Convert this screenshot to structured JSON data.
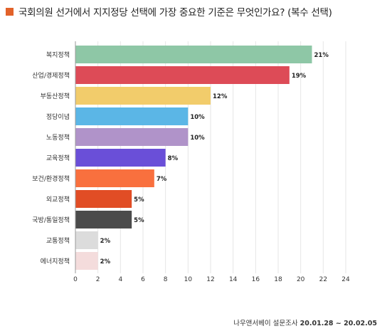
{
  "title": "국회의원 선거에서 지지정당 선택에 가장 중요한 기준은 무엇인가요? (복수 선택)",
  "footer": {
    "source": "나우앤서베이 설문조사",
    "period": "20.01.28 ~ 20.02.05"
  },
  "colors": {
    "title_marker": "#e2622a"
  },
  "chart_data": {
    "type": "bar",
    "orientation": "horizontal",
    "categories": [
      "복지정책",
      "산업/경제정책",
      "부동산정책",
      "정당이념",
      "노동정책",
      "교육정책",
      "보건/환경정책",
      "외교정책",
      "국방/통일정책",
      "교통정책",
      "에너지정책"
    ],
    "values": [
      21,
      19,
      12,
      10,
      10,
      8,
      7,
      5,
      5,
      2,
      2
    ],
    "value_labels": [
      "21%",
      "19%",
      "12%",
      "10%",
      "10%",
      "8%",
      "7%",
      "5%",
      "5%",
      "2%",
      "2%"
    ],
    "colors": [
      "#8ec7a6",
      "#dd4b57",
      "#f2cc6b",
      "#5bb6e6",
      "#b093c9",
      "#6a4fd8",
      "#f9703e",
      "#e14d25",
      "#4b4b4b",
      "#dcdcdc",
      "#f4dcdc"
    ],
    "xlim": [
      0,
      24
    ],
    "xticks": [
      0,
      2,
      4,
      6,
      8,
      10,
      12,
      14,
      16,
      18,
      20,
      22,
      24
    ],
    "grid": "x"
  }
}
